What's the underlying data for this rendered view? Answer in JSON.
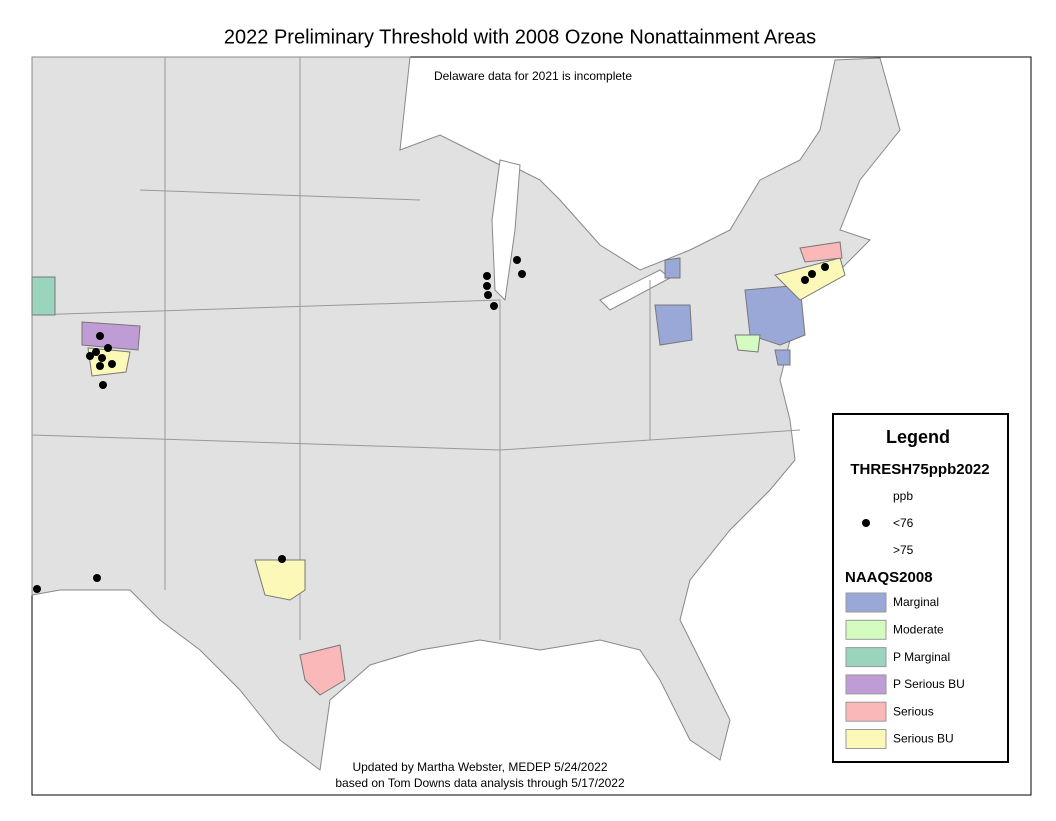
{
  "title": "2022 Preliminary Threshold with 2008 Ozone Nonattainment Areas",
  "note": "Delaware data for 2021 is incomplete",
  "footer": [
    "Updated by Martha Webster, MEDEP 5/24/2022",
    "based on Tom Downs data analysis through 5/17/2022"
  ],
  "legend": {
    "title": "Legend",
    "layer1": {
      "title": "THRESH75ppb2022",
      "subtitle": "ppb",
      "items": [
        "<76",
        ">75"
      ]
    },
    "layer2": {
      "title": "NAAQS2008",
      "items": [
        {
          "label": "Marginal",
          "color": "#9aa8d8"
        },
        {
          "label": "Moderate",
          "color": "#d4fcc0"
        },
        {
          "label": "P Marginal",
          "color": "#9ad4bc"
        },
        {
          "label": "P Serious BU",
          "color": "#bf9cd6"
        },
        {
          "label": "Serious",
          "color": "#fbb8b8"
        },
        {
          "label": "Serious BU",
          "color": "#fbf8b8"
        }
      ]
    }
  }
}
